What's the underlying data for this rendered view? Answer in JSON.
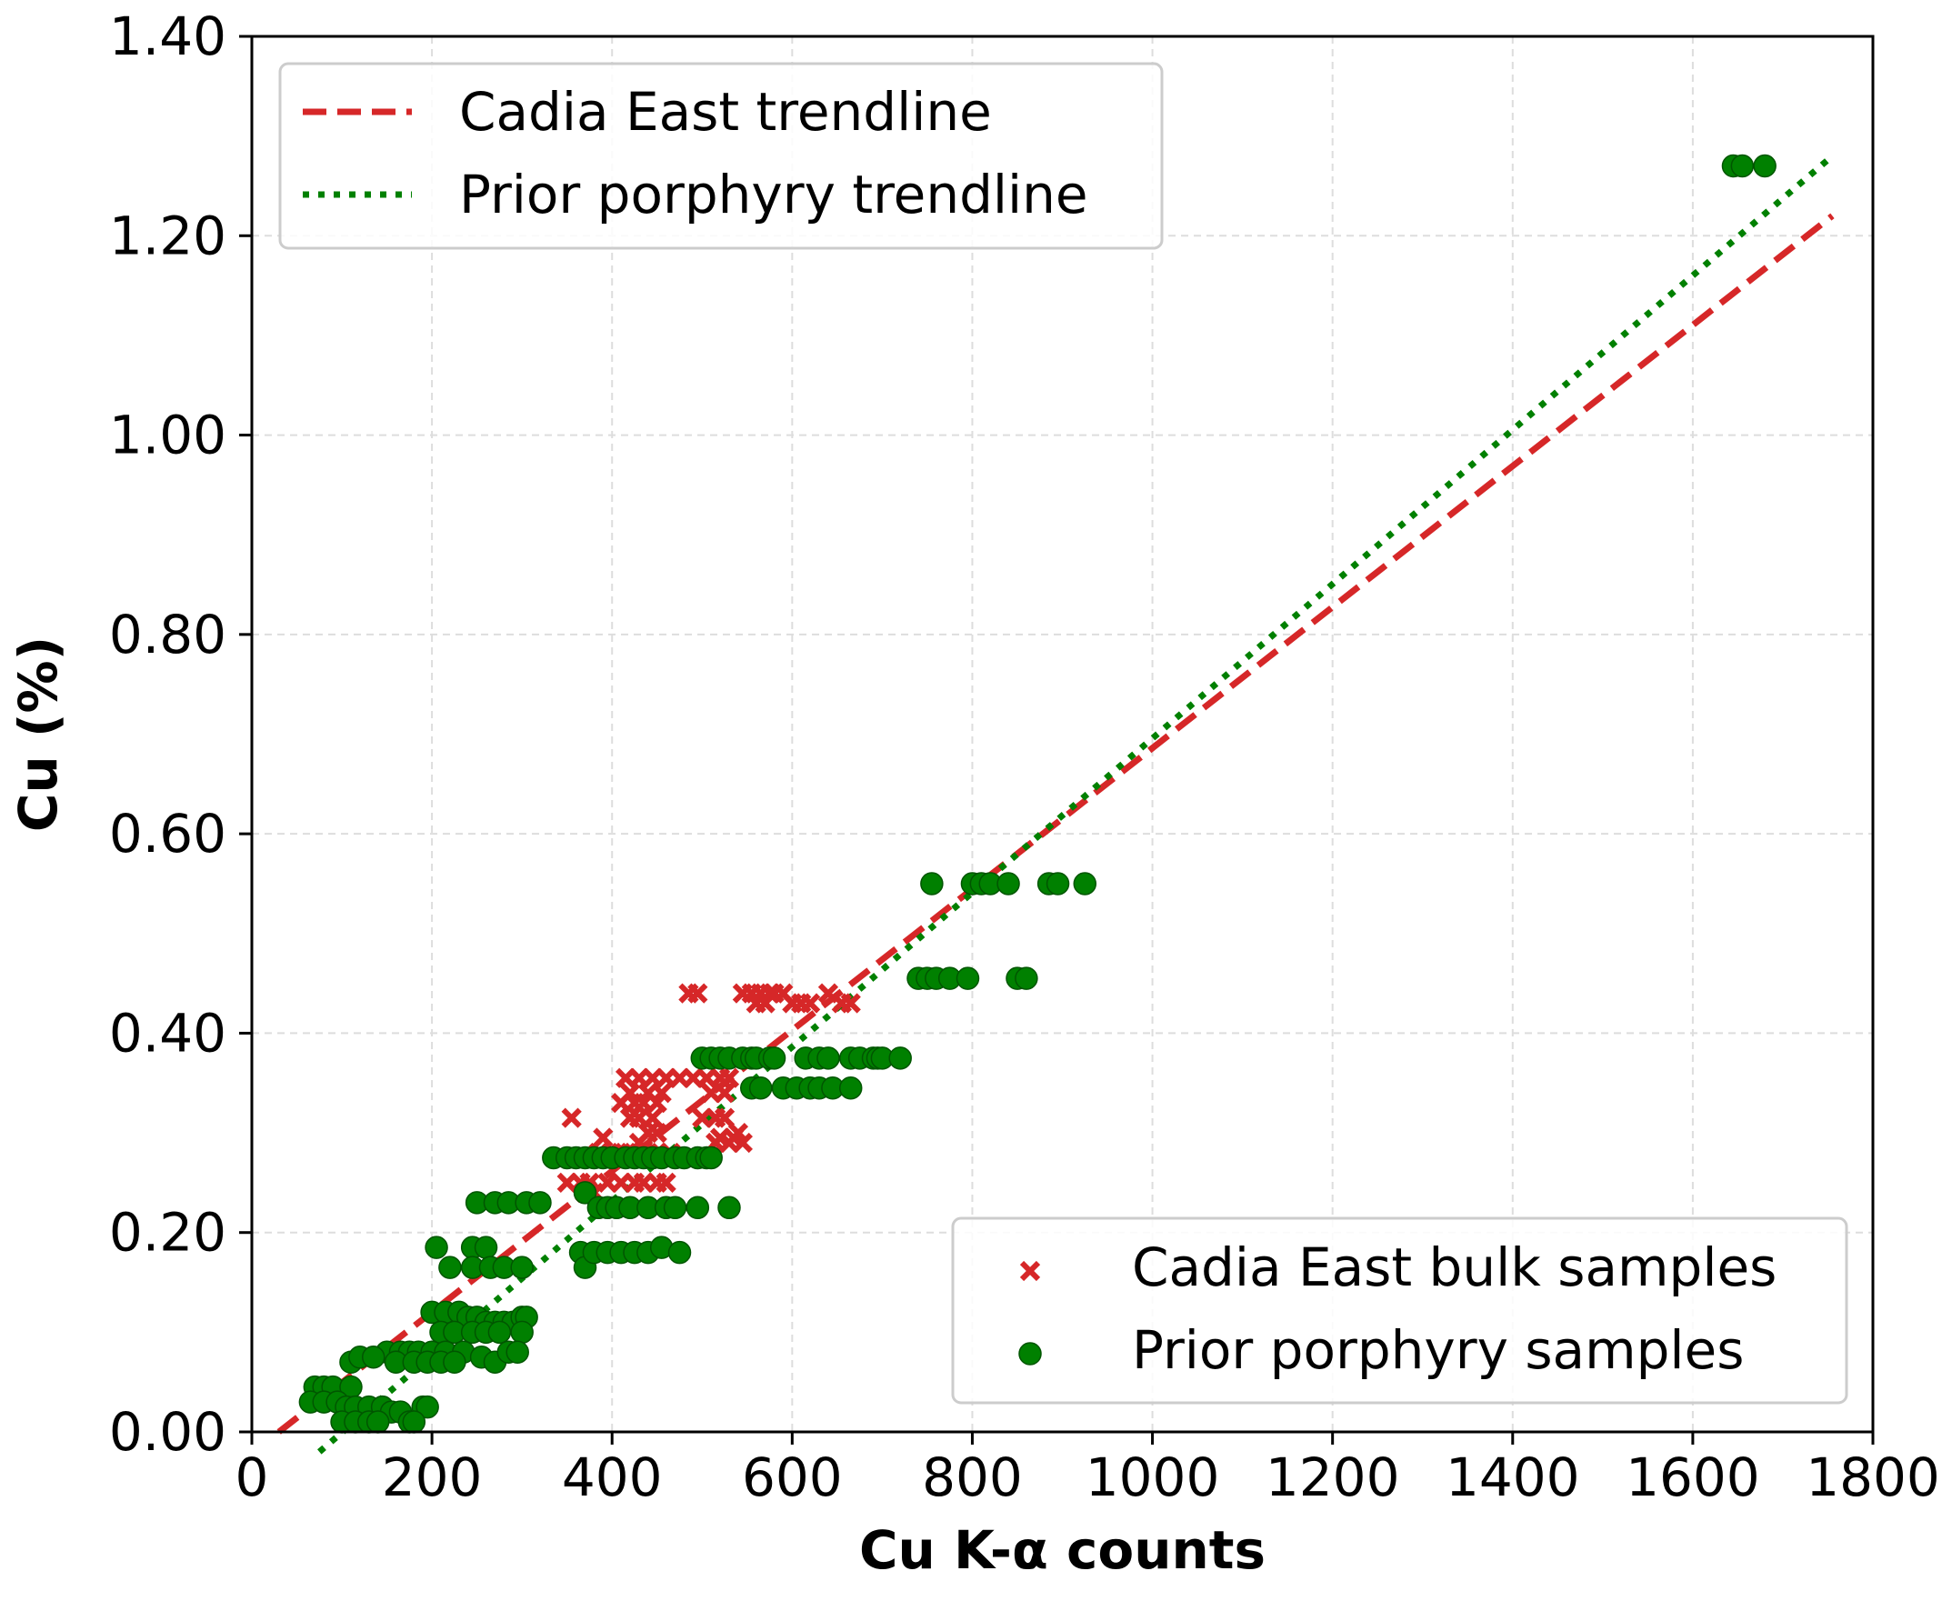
{
  "chart_data": {
    "type": "scatter",
    "title": "",
    "xlabel": "Cu K-α counts",
    "ylabel": "Cu (%)",
    "xlim": [
      0,
      1800
    ],
    "ylim": [
      0,
      1.4
    ],
    "grid": true,
    "xticks": [
      0,
      200,
      400,
      600,
      800,
      1000,
      1200,
      1400,
      1600,
      1800
    ],
    "xtick_labels": [
      "0",
      "200",
      "400",
      "600",
      "800",
      "1000",
      "1200",
      "1400",
      "1600",
      "1800"
    ],
    "yticks": [
      0,
      0.2,
      0.4,
      0.6,
      0.8,
      1.0,
      1.2,
      1.4
    ],
    "ytick_labels": [
      "0.00",
      "0.20",
      "0.40",
      "0.60",
      "0.80",
      "1.00",
      "1.20",
      "1.40"
    ],
    "trendlines": [
      {
        "name": "Cadia East trendline",
        "style": "dashed",
        "color": "#d62728",
        "x": [
          30,
          1755
        ],
        "y": [
          0.0,
          1.22
        ]
      },
      {
        "name": "Prior porphyry trendline",
        "style": "dotted",
        "color": "#008000",
        "x": [
          75,
          1755
        ],
        "y": [
          -0.02,
          1.28
        ]
      }
    ],
    "series": [
      {
        "name": "Cadia East bulk samples",
        "marker": "x",
        "color": "#d62728",
        "points": [
          [
            485,
            0.44
          ],
          [
            495,
            0.44
          ],
          [
            545,
            0.44
          ],
          [
            555,
            0.44
          ],
          [
            565,
            0.44
          ],
          [
            575,
            0.44
          ],
          [
            580,
            0.44
          ],
          [
            590,
            0.44
          ],
          [
            640,
            0.44
          ],
          [
            560,
            0.43
          ],
          [
            570,
            0.43
          ],
          [
            600,
            0.43
          ],
          [
            610,
            0.43
          ],
          [
            620,
            0.43
          ],
          [
            655,
            0.43
          ],
          [
            665,
            0.43
          ],
          [
            415,
            0.355
          ],
          [
            430,
            0.355
          ],
          [
            445,
            0.355
          ],
          [
            460,
            0.355
          ],
          [
            475,
            0.355
          ],
          [
            490,
            0.355
          ],
          [
            505,
            0.355
          ],
          [
            520,
            0.355
          ],
          [
            530,
            0.355
          ],
          [
            420,
            0.34
          ],
          [
            440,
            0.34
          ],
          [
            455,
            0.34
          ],
          [
            510,
            0.34
          ],
          [
            525,
            0.34
          ],
          [
            410,
            0.33
          ],
          [
            425,
            0.33
          ],
          [
            435,
            0.33
          ],
          [
            450,
            0.33
          ],
          [
            420,
            0.315
          ],
          [
            430,
            0.315
          ],
          [
            445,
            0.315
          ],
          [
            500,
            0.315
          ],
          [
            515,
            0.315
          ],
          [
            525,
            0.315
          ],
          [
            355,
            0.315
          ],
          [
            440,
            0.3
          ],
          [
            450,
            0.3
          ],
          [
            540,
            0.3
          ],
          [
            390,
            0.295
          ],
          [
            430,
            0.29
          ],
          [
            545,
            0.29
          ],
          [
            385,
            0.28
          ],
          [
            400,
            0.28
          ],
          [
            410,
            0.28
          ],
          [
            420,
            0.28
          ],
          [
            430,
            0.28
          ],
          [
            440,
            0.28
          ],
          [
            450,
            0.28
          ],
          [
            465,
            0.28
          ],
          [
            515,
            0.29
          ],
          [
            520,
            0.295
          ],
          [
            530,
            0.29
          ],
          [
            535,
            0.295
          ],
          [
            350,
            0.25
          ],
          [
            365,
            0.25
          ],
          [
            375,
            0.25
          ],
          [
            395,
            0.25
          ],
          [
            410,
            0.25
          ],
          [
            425,
            0.25
          ],
          [
            435,
            0.25
          ],
          [
            450,
            0.25
          ],
          [
            460,
            0.25
          ],
          [
            370,
            0.24
          ],
          [
            380,
            0.24
          ]
        ]
      },
      {
        "name": "Prior porphyry samples",
        "marker": "circle",
        "color": "#008000",
        "points": [
          [
            1645,
            1.27
          ],
          [
            1655,
            1.27
          ],
          [
            1680,
            1.27
          ],
          [
            755,
            0.55
          ],
          [
            800,
            0.55
          ],
          [
            810,
            0.55
          ],
          [
            820,
            0.55
          ],
          [
            840,
            0.55
          ],
          [
            885,
            0.55
          ],
          [
            895,
            0.55
          ],
          [
            925,
            0.55
          ],
          [
            740,
            0.455
          ],
          [
            750,
            0.455
          ],
          [
            760,
            0.455
          ],
          [
            775,
            0.455
          ],
          [
            795,
            0.455
          ],
          [
            850,
            0.455
          ],
          [
            860,
            0.455
          ],
          [
            500,
            0.375
          ],
          [
            510,
            0.375
          ],
          [
            520,
            0.375
          ],
          [
            530,
            0.375
          ],
          [
            545,
            0.375
          ],
          [
            555,
            0.375
          ],
          [
            560,
            0.375
          ],
          [
            575,
            0.375
          ],
          [
            580,
            0.375
          ],
          [
            615,
            0.375
          ],
          [
            630,
            0.375
          ],
          [
            640,
            0.375
          ],
          [
            665,
            0.375
          ],
          [
            675,
            0.375
          ],
          [
            690,
            0.375
          ],
          [
            695,
            0.375
          ],
          [
            700,
            0.375
          ],
          [
            720,
            0.375
          ],
          [
            555,
            0.345
          ],
          [
            565,
            0.345
          ],
          [
            590,
            0.345
          ],
          [
            605,
            0.345
          ],
          [
            620,
            0.345
          ],
          [
            630,
            0.345
          ],
          [
            645,
            0.345
          ],
          [
            665,
            0.345
          ],
          [
            335,
            0.275
          ],
          [
            350,
            0.275
          ],
          [
            360,
            0.275
          ],
          [
            370,
            0.275
          ],
          [
            380,
            0.275
          ],
          [
            390,
            0.275
          ],
          [
            400,
            0.275
          ],
          [
            415,
            0.275
          ],
          [
            425,
            0.275
          ],
          [
            435,
            0.275
          ],
          [
            445,
            0.275
          ],
          [
            455,
            0.275
          ],
          [
            470,
            0.275
          ],
          [
            480,
            0.275
          ],
          [
            495,
            0.275
          ],
          [
            505,
            0.275
          ],
          [
            510,
            0.275
          ],
          [
            370,
            0.24
          ],
          [
            385,
            0.225
          ],
          [
            395,
            0.225
          ],
          [
            405,
            0.225
          ],
          [
            420,
            0.225
          ],
          [
            440,
            0.225
          ],
          [
            460,
            0.225
          ],
          [
            470,
            0.225
          ],
          [
            495,
            0.225
          ],
          [
            530,
            0.225
          ],
          [
            250,
            0.23
          ],
          [
            270,
            0.23
          ],
          [
            285,
            0.23
          ],
          [
            305,
            0.23
          ],
          [
            320,
            0.23
          ],
          [
            365,
            0.18
          ],
          [
            370,
            0.165
          ],
          [
            380,
            0.18
          ],
          [
            395,
            0.18
          ],
          [
            410,
            0.18
          ],
          [
            425,
            0.18
          ],
          [
            440,
            0.18
          ],
          [
            455,
            0.185
          ],
          [
            475,
            0.18
          ],
          [
            205,
            0.185
          ],
          [
            245,
            0.185
          ],
          [
            260,
            0.185
          ],
          [
            220,
            0.165
          ],
          [
            245,
            0.165
          ],
          [
            265,
            0.165
          ],
          [
            280,
            0.165
          ],
          [
            300,
            0.165
          ],
          [
            200,
            0.12
          ],
          [
            215,
            0.12
          ],
          [
            230,
            0.12
          ],
          [
            240,
            0.115
          ],
          [
            250,
            0.115
          ],
          [
            260,
            0.11
          ],
          [
            270,
            0.11
          ],
          [
            280,
            0.11
          ],
          [
            290,
            0.11
          ],
          [
            300,
            0.115
          ],
          [
            305,
            0.115
          ],
          [
            210,
            0.1
          ],
          [
            225,
            0.1
          ],
          [
            245,
            0.1
          ],
          [
            260,
            0.1
          ],
          [
            275,
            0.1
          ],
          [
            300,
            0.1
          ],
          [
            150,
            0.08
          ],
          [
            165,
            0.08
          ],
          [
            175,
            0.08
          ],
          [
            185,
            0.08
          ],
          [
            200,
            0.08
          ],
          [
            215,
            0.08
          ],
          [
            235,
            0.08
          ],
          [
            255,
            0.075
          ],
          [
            270,
            0.07
          ],
          [
            285,
            0.08
          ],
          [
            295,
            0.08
          ],
          [
            160,
            0.07
          ],
          [
            180,
            0.07
          ],
          [
            195,
            0.07
          ],
          [
            210,
            0.07
          ],
          [
            225,
            0.07
          ],
          [
            110,
            0.07
          ],
          [
            120,
            0.075
          ],
          [
            135,
            0.075
          ],
          [
            70,
            0.045
          ],
          [
            80,
            0.045
          ],
          [
            90,
            0.045
          ],
          [
            110,
            0.045
          ],
          [
            65,
            0.03
          ],
          [
            80,
            0.03
          ],
          [
            95,
            0.03
          ],
          [
            105,
            0.025
          ],
          [
            115,
            0.025
          ],
          [
            130,
            0.025
          ],
          [
            145,
            0.025
          ],
          [
            155,
            0.02
          ],
          [
            165,
            0.02
          ],
          [
            190,
            0.025
          ],
          [
            195,
            0.025
          ],
          [
            100,
            0.01
          ],
          [
            115,
            0.01
          ],
          [
            130,
            0.01
          ],
          [
            140,
            0.01
          ],
          [
            175,
            0.01
          ],
          [
            180,
            0.01
          ]
        ]
      }
    ],
    "legends": [
      {
        "placement": "top-left",
        "entries": [
          "Cadia East trendline",
          "Prior porphyry trendline"
        ]
      },
      {
        "placement": "bottom-right",
        "entries": [
          "Cadia East bulk samples",
          "Prior porphyry samples"
        ]
      }
    ]
  }
}
